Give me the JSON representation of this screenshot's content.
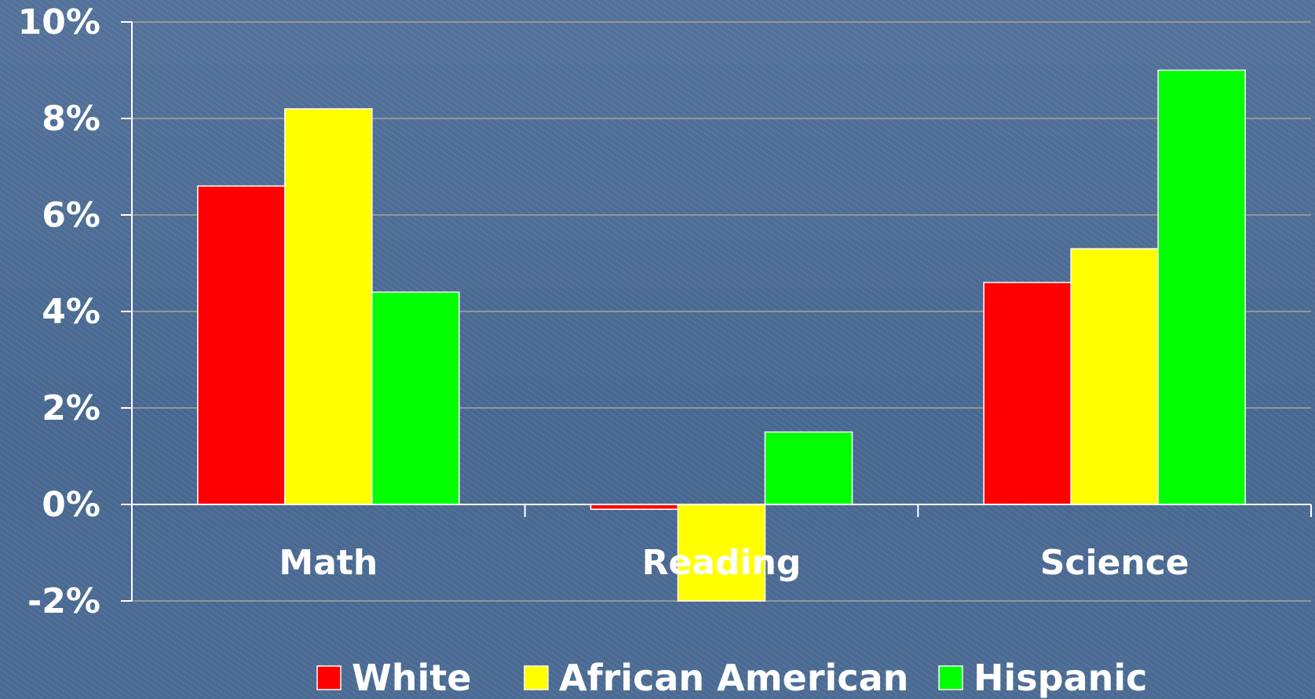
{
  "chart_data": {
    "type": "bar",
    "categories": [
      "Math",
      "Reading",
      "Science"
    ],
    "series": [
      {
        "name": "White",
        "color": "#ff0000",
        "values": [
          6.6,
          -0.1,
          4.6
        ]
      },
      {
        "name": "African American",
        "color": "#ffff00",
        "values": [
          8.2,
          -2.0,
          5.3
        ]
      },
      {
        "name": "Hispanic",
        "color": "#00ff00",
        "values": [
          4.4,
          1.5,
          9.0
        ]
      }
    ],
    "ylim": [
      -2,
      10
    ],
    "yticks": [
      10,
      8,
      6,
      4,
      2,
      0,
      -2
    ],
    "ytick_labels": [
      "10%",
      "8%",
      "6%",
      "4%",
      "2%",
      "0%",
      "-2%"
    ],
    "grid": true,
    "legend_position": "bottom",
    "title": "",
    "xlabel": "",
    "ylabel": ""
  },
  "colors": {
    "background": "#4c6c96",
    "gridline": "#a9a39a",
    "axis": "#ffffff",
    "text": "#ffffff"
  }
}
